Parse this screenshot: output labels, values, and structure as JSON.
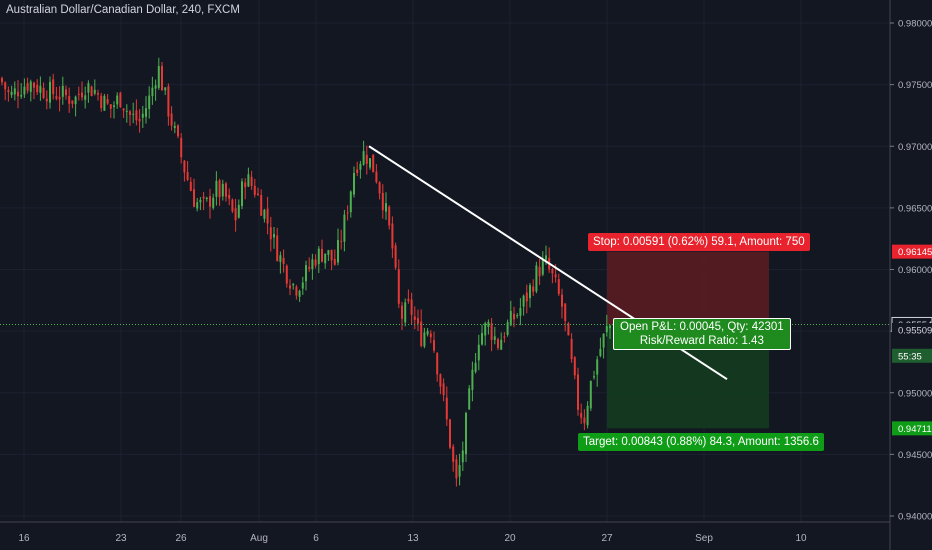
{
  "header": {
    "title": "Australian Dollar/Canadian Dollar, 240, FXCM"
  },
  "position": {
    "stop_label": "Stop: 0.00591 (0.62%) 59.1, Amount: 750",
    "pnl_label": "Open P&L: 0.00045, Qty: 42301",
    "ratio_label": "Risk/Reward Ratio: 1.43",
    "target_label": "Target: 0.00843 (0.88%) 84.3, Amount: 1356.6",
    "stop_price": 0.96145,
    "entry_price": 0.95554,
    "target_price": 0.94711
  },
  "colors": {
    "background": "#131722",
    "up_candle": "#4caf50",
    "down_candle": "#e53935",
    "stop_zone": "#5a1c22",
    "target_zone": "#133a20",
    "stop_badge": "#e8232e",
    "target_badge": "#0f9d17",
    "trendline": "#ffffff"
  },
  "chart_data": {
    "type": "candlestick",
    "title": "Australian Dollar/Canadian Dollar, 240, FXCM",
    "symbol": "AUDCAD",
    "interval": "240",
    "source": "FXCM",
    "ylim": [
      0.9395,
      0.9823
    ],
    "y_ticks": [
      "0.98000",
      "0.97500",
      "0.97000",
      "0.96500",
      "0.96000",
      "0.95500",
      "0.95000",
      "0.94500",
      "0.94000"
    ],
    "x_ticks": [
      "16",
      "23",
      "26",
      "Aug",
      "6",
      "13",
      "20",
      "27",
      "Sep",
      "10"
    ],
    "price_labels": [
      {
        "text": "0.96145",
        "value": 0.96145,
        "style": "stop"
      },
      {
        "text": "0.95554",
        "value": 0.95554,
        "style": "current"
      },
      {
        "text": "0.95509",
        "value": 0.95509,
        "style": "line"
      },
      {
        "text": "55:35",
        "value": 0.953,
        "style": "countdown"
      },
      {
        "text": "0.94711",
        "value": 0.94711,
        "style": "target"
      }
    ],
    "current_price": 0.95554,
    "price_path": [
      [
        0,
        0.9755
      ],
      [
        10,
        0.974
      ],
      [
        20,
        0.9748
      ],
      [
        30,
        0.9752
      ],
      [
        45,
        0.9745
      ],
      [
        60,
        0.9742
      ],
      [
        75,
        0.9738
      ],
      [
        85,
        0.975
      ],
      [
        95,
        0.9745
      ],
      [
        110,
        0.973
      ],
      [
        120,
        0.974
      ],
      [
        130,
        0.9725
      ],
      [
        140,
        0.972
      ],
      [
        150,
        0.974
      ],
      [
        158,
        0.9765
      ],
      [
        165,
        0.974
      ],
      [
        175,
        0.971
      ],
      [
        185,
        0.968
      ],
      [
        195,
        0.9655
      ],
      [
        205,
        0.965
      ],
      [
        215,
        0.9665
      ],
      [
        225,
        0.966
      ],
      [
        235,
        0.964
      ],
      [
        245,
        0.9675
      ],
      [
        255,
        0.9665
      ],
      [
        265,
        0.9645
      ],
      [
        275,
        0.962
      ],
      [
        285,
        0.96
      ],
      [
        295,
        0.9585
      ],
      [
        305,
        0.9595
      ],
      [
        315,
        0.961
      ],
      [
        325,
        0.9615
      ],
      [
        335,
        0.9605
      ],
      [
        345,
        0.964
      ],
      [
        355,
        0.9685
      ],
      [
        365,
        0.9695
      ],
      [
        375,
        0.968
      ],
      [
        385,
        0.965
      ],
      [
        392,
        0.962
      ],
      [
        400,
        0.956
      ],
      [
        410,
        0.957
      ],
      [
        420,
        0.9545
      ],
      [
        430,
        0.9555
      ],
      [
        440,
        0.951
      ],
      [
        450,
        0.946
      ],
      [
        456,
        0.9425
      ],
      [
        462,
        0.945
      ],
      [
        470,
        0.95
      ],
      [
        478,
        0.9545
      ],
      [
        488,
        0.9555
      ],
      [
        498,
        0.954
      ],
      [
        508,
        0.9555
      ],
      [
        518,
        0.9565
      ],
      [
        528,
        0.958
      ],
      [
        538,
        0.96
      ],
      [
        546,
        0.9605
      ],
      [
        554,
        0.959
      ],
      [
        562,
        0.957
      ],
      [
        570,
        0.953
      ],
      [
        578,
        0.949
      ],
      [
        584,
        0.9478
      ],
      [
        590,
        0.9505
      ],
      [
        598,
        0.953
      ],
      [
        606,
        0.955
      ],
      [
        612,
        0.9556
      ]
    ],
    "trendline": {
      "from": [
        "Aug 9",
        0.97
      ],
      "to": [
        "Sep 1",
        0.9511
      ]
    },
    "long_position_zone": {
      "stop": 0.96145,
      "entry": 0.95554,
      "target": 0.94711
    }
  }
}
